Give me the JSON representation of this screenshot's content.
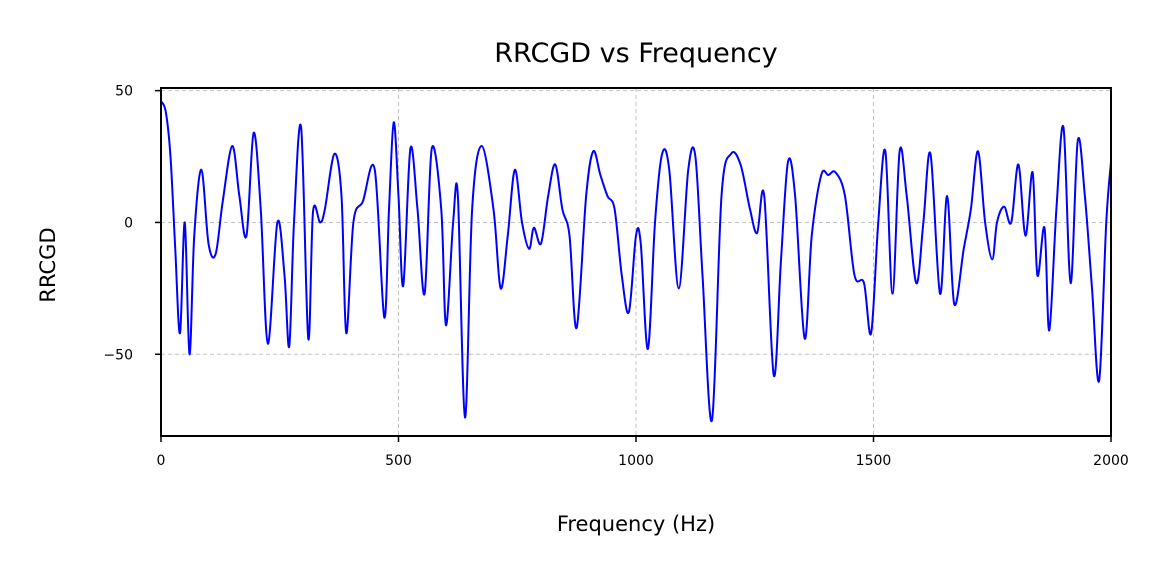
{
  "chart_data": {
    "type": "line",
    "title": "RRCGD vs Frequency",
    "xlabel": "Frequency (Hz)",
    "ylabel": "RRCGD",
    "xlim": [
      0,
      2000
    ],
    "ylim": [
      -81,
      51
    ],
    "x_ticks": [
      0,
      500,
      1000,
      1500,
      2000
    ],
    "x_tick_labels": [
      "0",
      "500",
      "1000",
      "1500",
      "2000"
    ],
    "y_ticks": [
      50,
      0,
      -50
    ],
    "y_tick_labels": [
      "50",
      "0",
      "−50"
    ],
    "grid": true,
    "colors": {
      "line": "#0000ff",
      "grid": "#c2c2c2",
      "axes": "#000000"
    },
    "series": [
      {
        "x": [
          0,
          10,
          20,
          30,
          40,
          50,
          60,
          70,
          85,
          100,
          115,
          130,
          150,
          165,
          180,
          195,
          210,
          225,
          245,
          260,
          270,
          280,
          295,
          310,
          320,
          335,
          345,
          365,
          380,
          390,
          405,
          425,
          450,
          470,
          480,
          490,
          500,
          510,
          525,
          540,
          555,
          570,
          590,
          600,
          615,
          625,
          640,
          655,
          675,
          700,
          715,
          730,
          745,
          760,
          775,
          785,
          800,
          815,
          830,
          845,
          860,
          875,
          895,
          910,
          925,
          940,
          955,
          970,
          985,
          1000,
          1010,
          1025,
          1040,
          1055,
          1070,
          1090,
          1110,
          1125,
          1140,
          1160,
          1180,
          1200,
          1220,
          1240,
          1255,
          1270,
          1290,
          1305,
          1320,
          1335,
          1355,
          1370,
          1390,
          1405,
          1420,
          1440,
          1460,
          1480,
          1495,
          1510,
          1525,
          1540,
          1555,
          1570,
          1590,
          1605,
          1620,
          1640,
          1655,
          1670,
          1690,
          1705,
          1720,
          1735,
          1750,
          1760,
          1775,
          1790,
          1805,
          1820,
          1835,
          1845,
          1860,
          1870,
          1885,
          1900,
          1915,
          1930,
          1945,
          1960,
          1975,
          1990,
          2000
        ],
        "y": [
          46,
          42,
          25,
          -10,
          -42,
          0,
          -50,
          -5,
          20,
          -8,
          -12,
          8,
          29,
          10,
          -5,
          34,
          5,
          -46,
          0,
          -20,
          -47,
          0,
          36,
          -44,
          4,
          0,
          5,
          26,
          10,
          -42,
          0,
          8,
          20,
          -36,
          5,
          38,
          10,
          -24,
          28,
          5,
          -27,
          28,
          5,
          -39,
          0,
          10,
          -74,
          5,
          29,
          5,
          -25,
          -5,
          20,
          0,
          -10,
          -2,
          -8,
          10,
          22,
          5,
          -5,
          -40,
          10,
          27,
          18,
          10,
          5,
          -20,
          -34,
          -5,
          -8,
          -48,
          0,
          26,
          20,
          -25,
          20,
          25,
          -20,
          -75,
          10,
          26,
          22,
          5,
          -4,
          10,
          -58,
          -15,
          23,
          10,
          -44,
          -5,
          18,
          18,
          19,
          10,
          -20,
          -23,
          -42,
          0,
          27,
          -27,
          27,
          10,
          -23,
          0,
          26,
          -27,
          10,
          -31,
          -10,
          5,
          27,
          0,
          -14,
          0,
          6,
          0,
          22,
          -5,
          19,
          -20,
          -2,
          -41,
          5,
          36,
          -23,
          31,
          10,
          -25,
          -60,
          0,
          23
        ]
      }
    ]
  }
}
